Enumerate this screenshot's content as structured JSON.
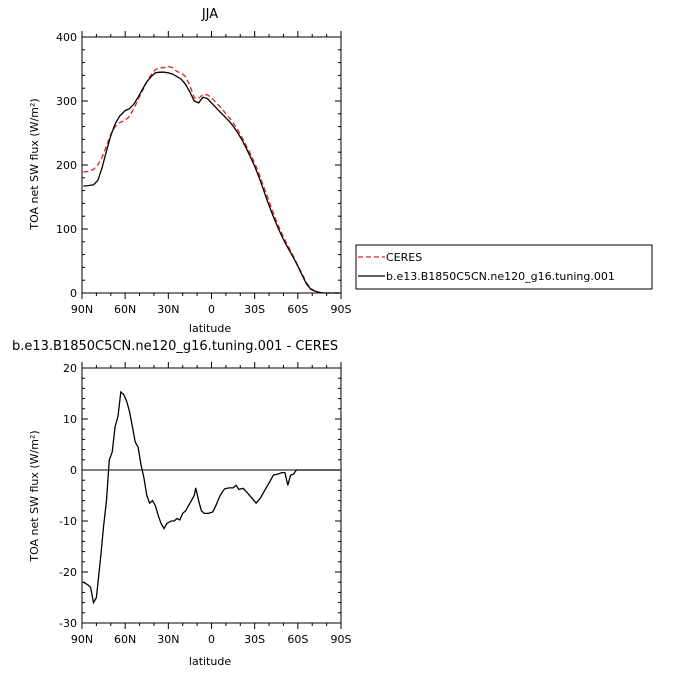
{
  "chart_data": [
    {
      "type": "line",
      "title": "JJA",
      "xlabel": "latitude",
      "ylabel": "TOA net SW flux (W/m²)",
      "ylim": [
        0,
        400
      ],
      "xlim": [
        90,
        -90
      ],
      "xticks": [
        {
          "v": 90,
          "label": "90N"
        },
        {
          "v": 60,
          "label": "60N"
        },
        {
          "v": 30,
          "label": "30N"
        },
        {
          "v": 0,
          "label": "0"
        },
        {
          "v": -30,
          "label": "30S"
        },
        {
          "v": -60,
          "label": "60S"
        },
        {
          "v": -90,
          "label": "90S"
        }
      ],
      "yticks": [
        0,
        100,
        200,
        300,
        400
      ],
      "legend_position": "right",
      "series": [
        {
          "name": "CERES",
          "color": "#e02020",
          "dash": "dashed",
          "points": [
            [
              89,
              189
            ],
            [
              85,
              190
            ],
            [
              82,
              193
            ],
            [
              79,
              200
            ],
            [
              76,
              212
            ],
            [
              73,
              230
            ],
            [
              70,
              248
            ],
            [
              67,
              260
            ],
            [
              64,
              266
            ],
            [
              60,
              270
            ],
            [
              57,
              276
            ],
            [
              54,
              288
            ],
            [
              51,
              302
            ],
            [
              48,
              316
            ],
            [
              45,
              330
            ],
            [
              42,
              341
            ],
            [
              39,
              349
            ],
            [
              36,
              352
            ],
            [
              33,
              352
            ],
            [
              30,
              354
            ],
            [
              27,
              352
            ],
            [
              24,
              346
            ],
            [
              21,
              344
            ],
            [
              18,
              338
            ],
            [
              15,
              324
            ],
            [
              12,
              305
            ],
            [
              9,
              304
            ],
            [
              6,
              310
            ],
            [
              3,
              310
            ],
            [
              0,
              305
            ],
            [
              -3,
              298
            ],
            [
              -6,
              291
            ],
            [
              -9,
              283
            ],
            [
              -12,
              275
            ],
            [
              -15,
              266
            ],
            [
              -18,
              256
            ],
            [
              -21,
              244
            ],
            [
              -24,
              231
            ],
            [
              -27,
              218
            ],
            [
              -30,
              203
            ],
            [
              -33,
              187
            ],
            [
              -36,
              168
            ],
            [
              -39,
              150
            ],
            [
              -42,
              131
            ],
            [
              -45,
              113
            ],
            [
              -48,
              97
            ],
            [
              -51,
              83
            ],
            [
              -54,
              70
            ],
            [
              -57,
              57
            ],
            [
              -60,
              43
            ],
            [
              -63,
              30
            ],
            [
              -66,
              16
            ],
            [
              -69,
              7
            ],
            [
              -72,
              3
            ],
            [
              -75,
              1
            ],
            [
              -78,
              0
            ],
            [
              -82,
              0
            ],
            [
              -86,
              0
            ],
            [
              -89,
              0
            ]
          ]
        },
        {
          "name": "b.e13.B1850C5CN.ne120_g16.tuning.001",
          "color": "#000000",
          "dash": "solid",
          "points": [
            [
              89,
              167
            ],
            [
              85,
              168
            ],
            [
              82,
              169
            ],
            [
              79,
              176
            ],
            [
              76,
              196
            ],
            [
              73,
              222
            ],
            [
              70,
              246
            ],
            [
              67,
              264
            ],
            [
              64,
              276
            ],
            [
              60,
              285
            ],
            [
              57,
              288
            ],
            [
              54,
              295
            ],
            [
              51,
              306
            ],
            [
              48,
              318
            ],
            [
              45,
              330
            ],
            [
              42,
              338
            ],
            [
              39,
              344
            ],
            [
              36,
              345
            ],
            [
              33,
              345
            ],
            [
              30,
              344
            ],
            [
              27,
              342
            ],
            [
              24,
              338
            ],
            [
              21,
              334
            ],
            [
              18,
              326
            ],
            [
              15,
              314
            ],
            [
              12,
              300
            ],
            [
              9,
              297
            ],
            [
              6,
              306
            ],
            [
              3,
              304
            ],
            [
              0,
              297
            ],
            [
              -3,
              290
            ],
            [
              -6,
              283
            ],
            [
              -9,
              276
            ],
            [
              -12,
              269
            ],
            [
              -15,
              261
            ],
            [
              -18,
              251
            ],
            [
              -21,
              240
            ],
            [
              -24,
              227
            ],
            [
              -27,
              213
            ],
            [
              -30,
              198
            ],
            [
              -33,
              181
            ],
            [
              -36,
              162
            ],
            [
              -39,
              143
            ],
            [
              -42,
              125
            ],
            [
              -45,
              108
            ],
            [
              -48,
              93
            ],
            [
              -51,
              79
            ],
            [
              -54,
              67
            ],
            [
              -57,
              55
            ],
            [
              -60,
              42
            ],
            [
              -63,
              28
            ],
            [
              -66,
              14
            ],
            [
              -69,
              6
            ],
            [
              -72,
              3
            ],
            [
              -75,
              1
            ],
            [
              -78,
              0
            ],
            [
              -82,
              0
            ],
            [
              -86,
              0
            ],
            [
              -89,
              0
            ]
          ]
        }
      ]
    },
    {
      "type": "line",
      "title": "b.e13.B1850C5CN.ne120_g16.tuning.001 - CERES",
      "xlabel": "latitude",
      "ylabel": "TOA net SW flux (W/m²)",
      "ylim": [
        -30,
        20
      ],
      "xlim": [
        90,
        -90
      ],
      "xticks": [
        {
          "v": 90,
          "label": "90N"
        },
        {
          "v": 60,
          "label": "60N"
        },
        {
          "v": 30,
          "label": "30N"
        },
        {
          "v": 0,
          "label": "0"
        },
        {
          "v": -30,
          "label": "30S"
        },
        {
          "v": -60,
          "label": "60S"
        },
        {
          "v": -90,
          "label": "90S"
        }
      ],
      "yticks": [
        -30,
        -20,
        -10,
        0,
        10,
        20
      ],
      "series": [
        {
          "name": "",
          "color": "#000000",
          "dash": "solid",
          "points": [
            [
              89,
              -22
            ],
            [
              86,
              -22.5
            ],
            [
              84,
              -23
            ],
            [
              82,
              -26
            ],
            [
              80,
              -25
            ],
            [
              77,
              -17
            ],
            [
              75,
              -11
            ],
            [
              73,
              -6
            ],
            [
              71,
              2
            ],
            [
              69,
              3.5
            ],
            [
              67,
              8.5
            ],
            [
              65,
              10.5
            ],
            [
              63,
              15.3
            ],
            [
              61,
              14.8
            ],
            [
              59,
              13.5
            ],
            [
              57,
              11.5
            ],
            [
              55,
              8.5
            ],
            [
              53,
              5.5
            ],
            [
              51,
              4.5
            ],
            [
              49,
              1
            ],
            [
              47,
              -1.5
            ],
            [
              45,
              -5
            ],
            [
              43,
              -6.5
            ],
            [
              41,
              -6
            ],
            [
              39,
              -7
            ],
            [
              37,
              -9
            ],
            [
              35,
              -10.5
            ],
            [
              33,
              -11.5
            ],
            [
              31,
              -10.5
            ],
            [
              28,
              -10
            ],
            [
              26,
              -10
            ],
            [
              24,
              -9.5
            ],
            [
              22,
              -9.8
            ],
            [
              20,
              -8.5
            ],
            [
              18,
              -8
            ],
            [
              16,
              -7
            ],
            [
              14,
              -6
            ],
            [
              12,
              -5
            ],
            [
              11,
              -3.5
            ],
            [
              9,
              -6
            ],
            [
              7,
              -8
            ],
            [
              5,
              -8.5
            ],
            [
              2,
              -8.5
            ],
            [
              -1,
              -8.2
            ],
            [
              -3,
              -7
            ],
            [
              -6,
              -5
            ],
            [
              -9,
              -3.7
            ],
            [
              -12,
              -3.5
            ],
            [
              -15,
              -3.5
            ],
            [
              -17,
              -3
            ],
            [
              -19,
              -3.8
            ],
            [
              -22,
              -3.6
            ],
            [
              -25,
              -4.5
            ],
            [
              -28,
              -5.5
            ],
            [
              -31,
              -6.5
            ],
            [
              -34,
              -5.5
            ],
            [
              -37,
              -4
            ],
            [
              -40,
              -2.5
            ],
            [
              -43,
              -1
            ],
            [
              -46,
              -0.8
            ],
            [
              -49,
              -0.5
            ],
            [
              -51,
              -0.5
            ],
            [
              -53,
              -3
            ],
            [
              -55,
              -1
            ],
            [
              -57,
              -0.8
            ],
            [
              -59,
              0
            ],
            [
              -62,
              0
            ],
            [
              -66,
              0
            ],
            [
              -70,
              0
            ],
            [
              -78,
              0
            ],
            [
              -86,
              0
            ],
            [
              -89,
              0
            ]
          ]
        }
      ]
    }
  ]
}
